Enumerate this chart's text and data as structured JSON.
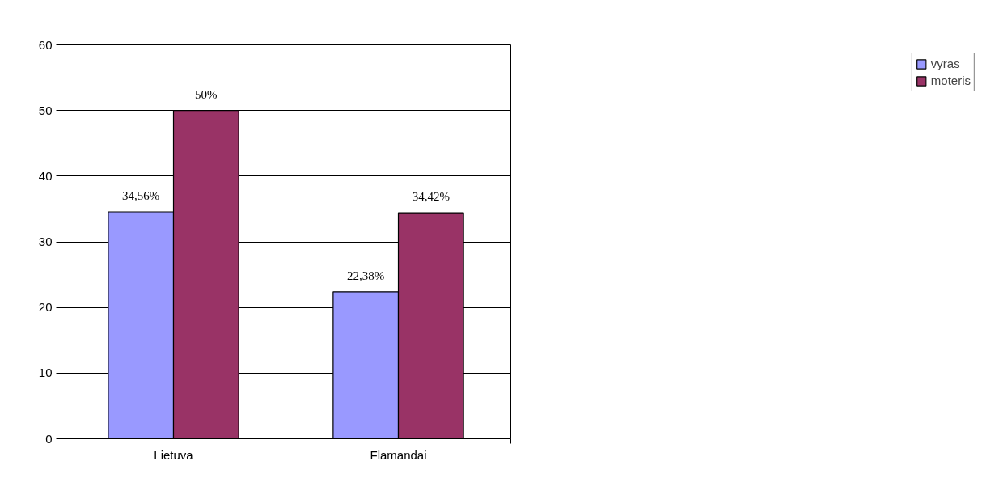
{
  "chart_data": {
    "type": "bar",
    "categories": [
      "Lietuva",
      "Flamandai"
    ],
    "series": [
      {
        "name": "vyras",
        "color": "#9999ff",
        "values": [
          34.56,
          22.38
        ],
        "value_labels": [
          "34,56%",
          "22,38%"
        ]
      },
      {
        "name": "moteris",
        "color": "#993366",
        "values": [
          50,
          34.42
        ],
        "value_labels": [
          "50%",
          "34,42%"
        ]
      }
    ],
    "ylim": [
      0,
      60
    ],
    "yticks": [
      0,
      10,
      20,
      30,
      40,
      50,
      60
    ],
    "grid": "y",
    "legend": "right"
  }
}
